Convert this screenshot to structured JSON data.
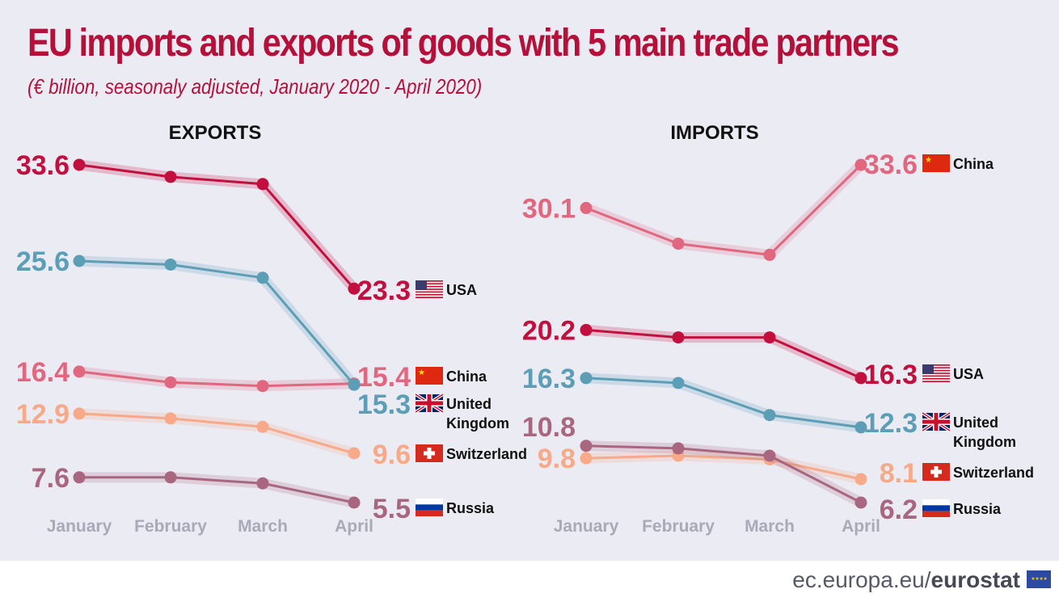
{
  "title": "EU imports and exports of goods with 5 main trade partners",
  "subtitle": "(€ billion, seasonaly adjusted, January 2020 - April 2020)",
  "footer": {
    "site": "ec.europa.eu/",
    "brand": "eurostat"
  },
  "colors": {
    "USA": "#c20f3e",
    "China": "#e0677f",
    "United Kingdom": "#5b9eb5",
    "Switzerland": "#f7a988",
    "Russia": "#a8677f",
    "title": "#b5103a",
    "background": "#ebebf4"
  },
  "chart_data": [
    {
      "type": "line",
      "title": "EXPORTS",
      "categories": [
        "January",
        "February",
        "March",
        "April"
      ],
      "series": [
        {
          "name": "USA",
          "values": [
            33.6,
            32.6,
            32.0,
            23.3
          ],
          "labels": [
            "33.6",
            "23.3"
          ]
        },
        {
          "name": "China",
          "values": [
            16.4,
            15.5,
            15.2,
            15.4
          ],
          "labels": [
            "16.4",
            "15.4"
          ]
        },
        {
          "name": "United Kingdom",
          "values": [
            25.6,
            25.3,
            24.2,
            15.3
          ],
          "labels": [
            "25.6",
            "15.3"
          ]
        },
        {
          "name": "Switzerland",
          "values": [
            12.9,
            12.5,
            11.8,
            9.6
          ],
          "labels": [
            "12.9",
            "9.6"
          ]
        },
        {
          "name": "Russia",
          "values": [
            7.6,
            7.6,
            7.1,
            5.5
          ],
          "labels": [
            "7.6",
            "5.5"
          ]
        }
      ],
      "legend_names": {
        "USA": [
          "USA"
        ],
        "China": [
          "China"
        ],
        "United Kingdom": [
          "United",
          "Kingdom"
        ],
        "Switzerland": [
          "Switzerland"
        ],
        "Russia": [
          "Russia"
        ]
      }
    },
    {
      "type": "line",
      "title": "IMPORTS",
      "categories": [
        "January",
        "February",
        "March",
        "April"
      ],
      "series": [
        {
          "name": "China",
          "values": [
            30.1,
            27.2,
            26.3,
            33.6
          ],
          "labels": [
            "30.1",
            "33.6"
          ]
        },
        {
          "name": "USA",
          "values": [
            20.2,
            19.6,
            19.6,
            16.3
          ],
          "labels": [
            "20.2",
            "16.3"
          ]
        },
        {
          "name": "United Kingdom",
          "values": [
            16.3,
            15.9,
            13.3,
            12.3
          ],
          "labels": [
            "16.3",
            "12.3"
          ]
        },
        {
          "name": "Switzerland",
          "values": [
            9.8,
            10.0,
            9.7,
            8.1
          ],
          "labels": [
            "9.8",
            "8.1"
          ]
        },
        {
          "name": "Russia",
          "values": [
            10.8,
            10.6,
            10.0,
            6.2
          ],
          "labels": [
            "10.8",
            "6.2"
          ]
        }
      ],
      "legend_names": {
        "China": [
          "China"
        ],
        "USA": [
          "USA"
        ],
        "United Kingdom": [
          "United",
          "Kingdom"
        ],
        "Switzerland": [
          "Switzerland"
        ],
        "Russia": [
          "Russia"
        ]
      }
    }
  ]
}
